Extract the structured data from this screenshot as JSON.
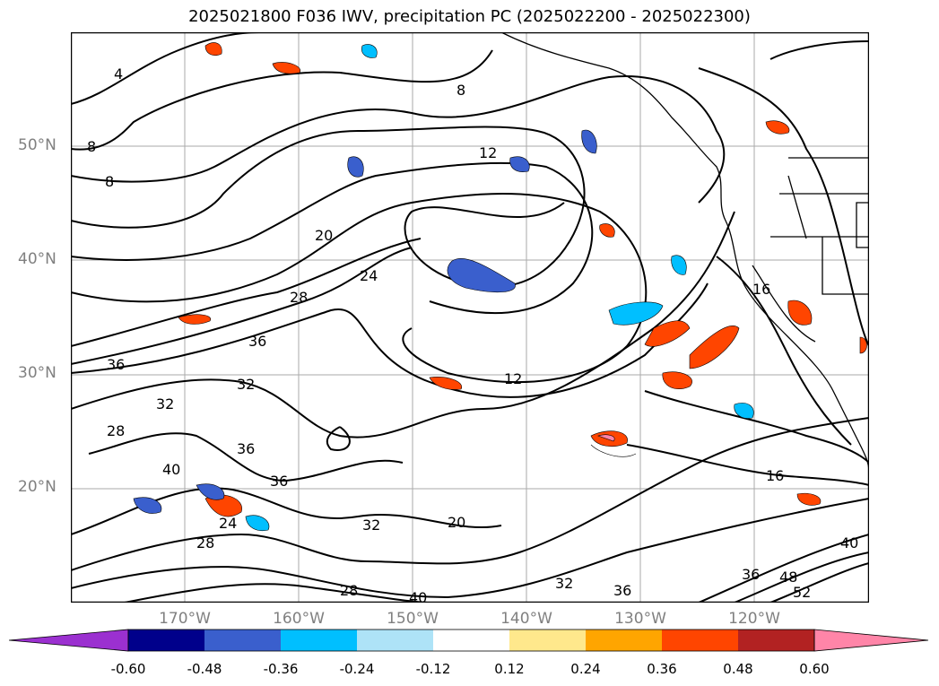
{
  "title": "2025021800 F036 IWV, precipitation PC (2025022200 - 2025022300)",
  "lat_labels": [
    "50°N",
    "40°N",
    "30°N",
    "20°N"
  ],
  "lon_labels": [
    "170°W",
    "160°W",
    "150°W",
    "140°W",
    "130°W",
    "120°W"
  ],
  "colorbar": {
    "ticks": [
      "-0.60",
      "-0.48",
      "-0.36",
      "-0.24",
      "-0.12",
      "0.12",
      "0.24",
      "0.36",
      "0.48",
      "0.60"
    ],
    "colors": [
      "#9b30d0",
      "#00008b",
      "#3a5fcd",
      "#00bfff",
      "#aee3f7",
      "#ffffff",
      "#ffe88c",
      "#ffa500",
      "#ff4500",
      "#b22222",
      "#ff85a8"
    ]
  },
  "contour_labels": [
    "4",
    "8",
    "8",
    "8",
    "12",
    "12",
    "16",
    "16",
    "20",
    "20",
    "24",
    "24",
    "28",
    "28",
    "28",
    "28",
    "32",
    "32",
    "32",
    "32",
    "36",
    "36",
    "36",
    "36",
    "36",
    "36",
    "40",
    "40",
    "40",
    "48",
    "52"
  ]
}
